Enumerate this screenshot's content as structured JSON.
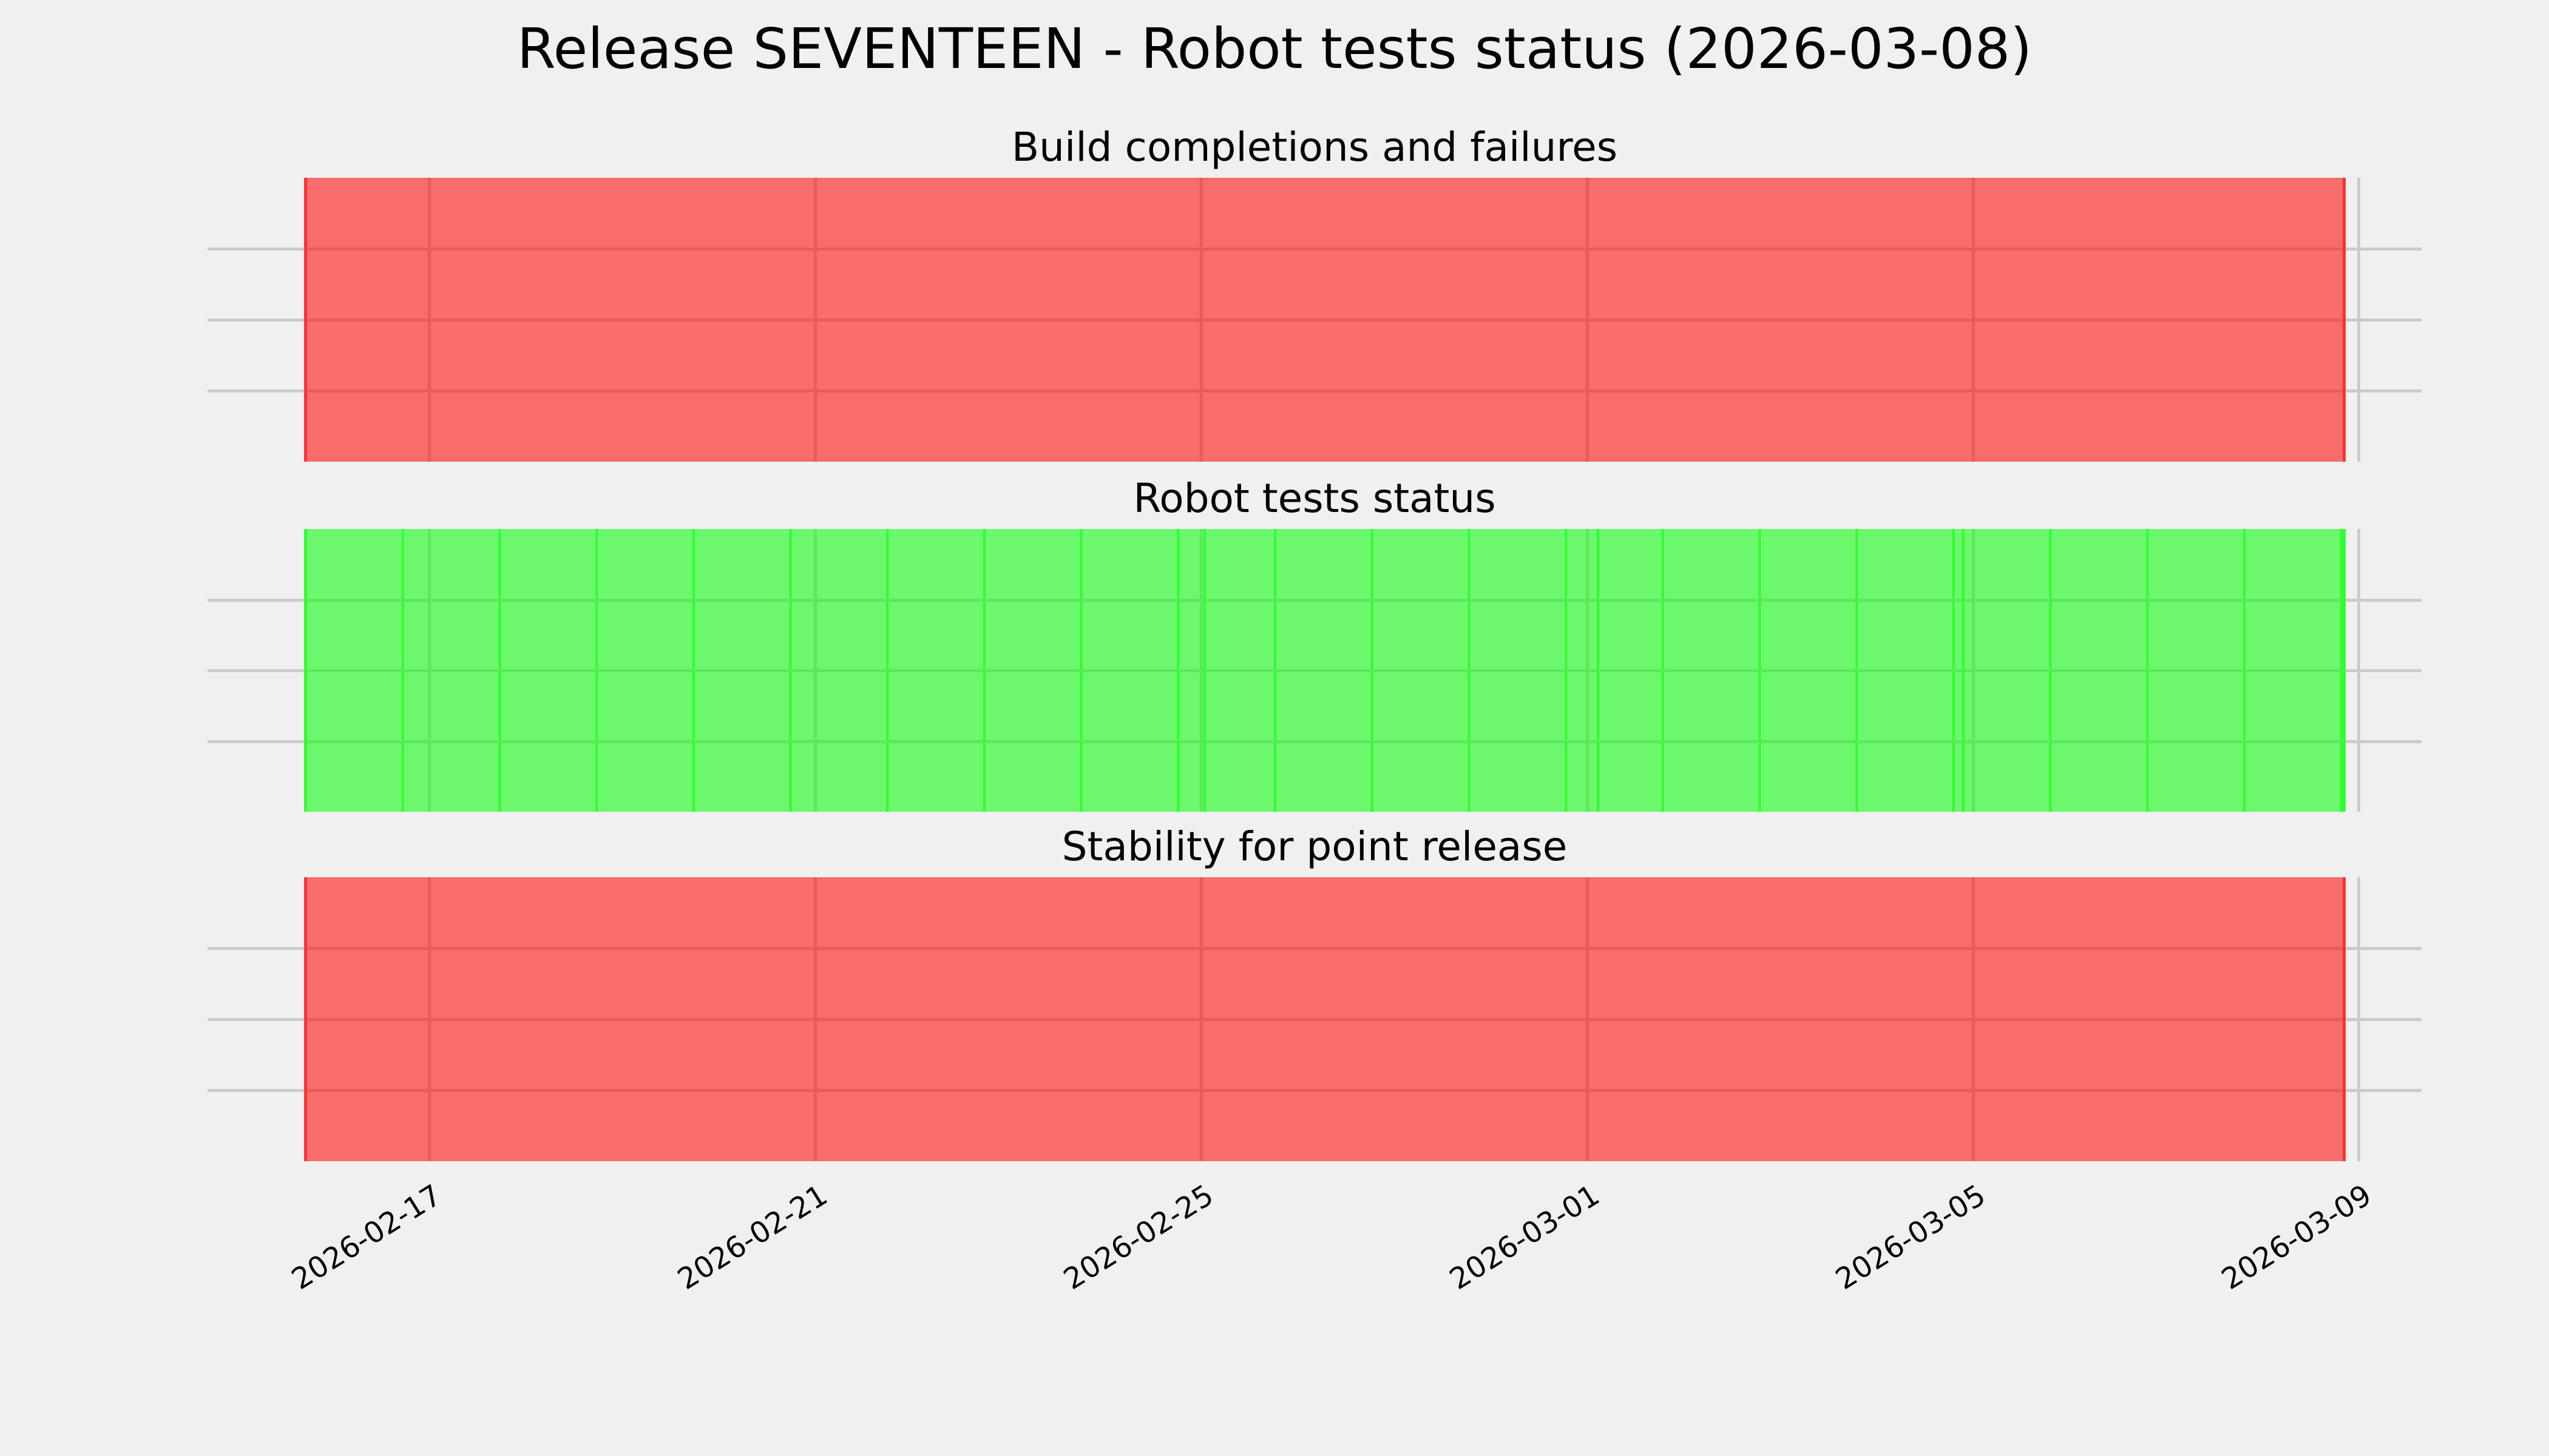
{
  "chart_data": {
    "type": "bar",
    "variant": "status-timeline",
    "title": "Release SEVENTEEN - Robot tests status (2026-03-08)",
    "x_axis": {
      "range_start": "2026-02-16",
      "range_end": "2026-03-09",
      "tick_labels": [
        "2026-02-17",
        "2026-02-21",
        "2026-02-25",
        "2026-03-01",
        "2026-03-05",
        "2026-03-09"
      ],
      "tick_interval_days": 4,
      "tick_label_rotation_deg": 32,
      "grid": true
    },
    "y_axis": {
      "tick_labels": [],
      "gridlines_per_subplot": 3
    },
    "subplots": [
      {
        "title": "Build completions and failures",
        "bar_color": "#f86c6c",
        "span": [
          "2026-02-16",
          "2026-03-09"
        ],
        "daily_segments": false
      },
      {
        "title": "Robot tests status",
        "bar_color": "#6cf86c",
        "span": [
          "2026-02-16",
          "2026-03-09"
        ],
        "daily_segments": true,
        "segment_count": 21
      },
      {
        "title": "Stability for point release",
        "bar_color": "#f86c6c",
        "span": [
          "2026-02-16",
          "2026-03-09"
        ],
        "daily_segments": false
      }
    ],
    "legend": null
  },
  "style": {
    "background": "#f0f0f0",
    "grid_color": "#cbcbcb",
    "text_color": "#000000",
    "red_fill": "#f86c6c",
    "red_edge": "#fc3131",
    "red_grid_tint": "#e85b5b",
    "green_fill": "#6cf86c",
    "green_edge": "#31fc31",
    "green_grid_tint": "#5be85b"
  }
}
